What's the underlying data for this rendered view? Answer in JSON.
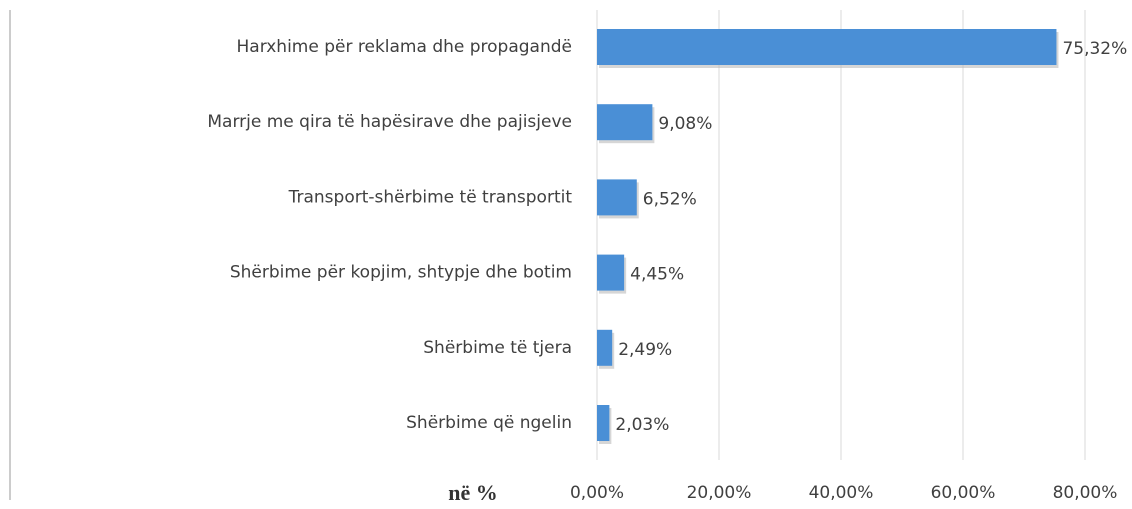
{
  "chart_data": {
    "type": "bar",
    "orientation": "horizontal",
    "categories": [
      "Harxhime për reklama dhe propagandë",
      "Marrje me qira të hapësirave dhe pajisjeve",
      "Transport-shërbime të transportit",
      "Shërbime për kopjim, shtypje dhe botim",
      "Shërbime të tjera",
      "Shërbime që ngelin"
    ],
    "values": [
      75.32,
      9.08,
      6.52,
      4.45,
      2.49,
      2.03
    ],
    "value_labels": [
      "75,32%",
      "9,08%",
      "6,52%",
      "4,45%",
      "2,49%",
      "2,03%"
    ],
    "color": "#4a8fd6",
    "x_label": "në %",
    "xlim": [
      0,
      80
    ],
    "xticks": [
      {
        "value": 0,
        "label": "0,00%"
      },
      {
        "value": 20,
        "label": "20,00%"
      },
      {
        "value": 40,
        "label": "40,00%"
      },
      {
        "value": 60,
        "label": "60,00%"
      },
      {
        "value": 80,
        "label": "80,00%"
      }
    ],
    "grid": true
  }
}
